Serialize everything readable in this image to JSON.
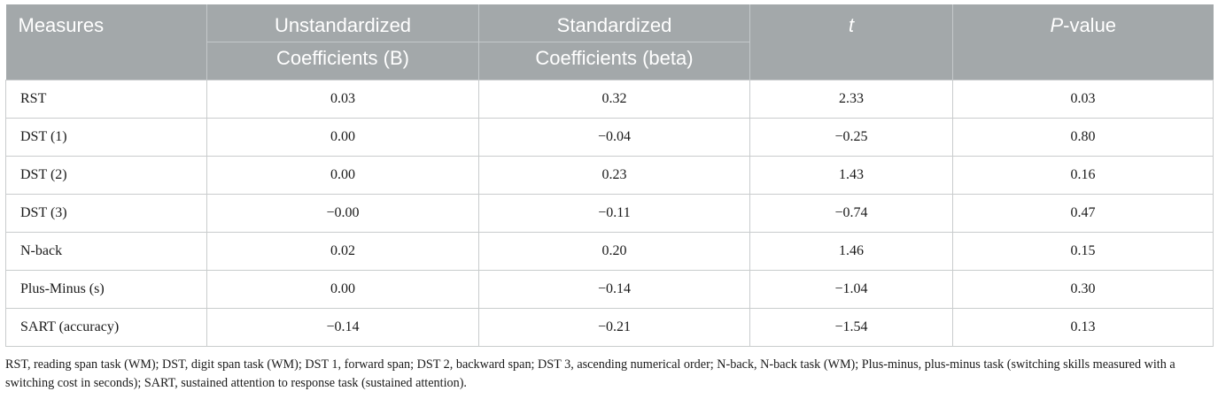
{
  "table": {
    "headers": {
      "measures": "Measures",
      "unstandardized_line1": "Unstandardized",
      "unstandardized_line2": "Coefficients (B)",
      "standardized_line1": "Standardized",
      "standardized_line2": "Coefficients (beta)",
      "t": "t",
      "p_italic": "P",
      "p_rest": "-value"
    },
    "rows": [
      {
        "measure": "RST",
        "b": "0.03",
        "beta": "0.32",
        "t": "2.33",
        "p": "0.03"
      },
      {
        "measure": "DST (1)",
        "b": "0.00",
        "beta": "−0.04",
        "t": "−0.25",
        "p": "0.80"
      },
      {
        "measure": "DST (2)",
        "b": "0.00",
        "beta": "0.23",
        "t": "1.43",
        "p": "0.16"
      },
      {
        "measure": "DST (3)",
        "b": "−0.00",
        "beta": "−0.11",
        "t": "−0.74",
        "p": "0.47"
      },
      {
        "measure": "N-back",
        "b": "0.02",
        "beta": "0.20",
        "t": "1.46",
        "p": "0.15"
      },
      {
        "measure": "Plus-Minus (s)",
        "b": "0.00",
        "beta": "−0.14",
        "t": "−1.04",
        "p": "0.30"
      },
      {
        "measure": "SART (accuracy)",
        "b": "−0.14",
        "beta": "−0.21",
        "t": "−1.54",
        "p": "0.13"
      }
    ]
  },
  "footnote": "RST, reading span task (WM); DST, digit span task (WM); DST 1, forward span; DST 2, backward span; DST 3, ascending numerical order; N-back, N-back task (WM); Plus-minus, plus-minus task (switching skills measured with a switching cost in seconds); SART, sustained attention to response task (sustained attention).",
  "colors": {
    "header_bg": "#a3a8aa",
    "header_text": "#ffffff",
    "grid": "#c9cccd"
  }
}
